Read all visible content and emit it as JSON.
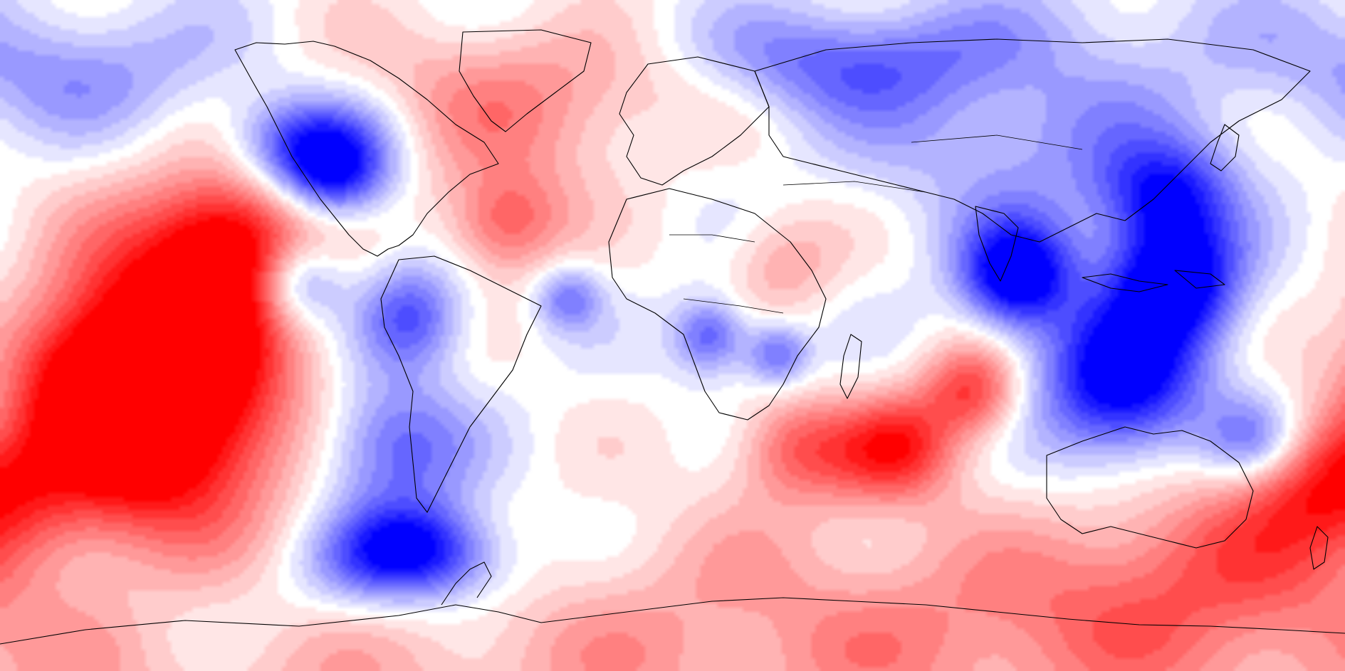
{
  "map": {
    "projection": "equirectangular",
    "colormap": [
      "#0000ff",
      "#ffffff",
      "#ff0000"
    ],
    "field_value_range": [
      -1,
      1
    ],
    "anomalies": [
      {
        "lon": -131,
        "lat": 4,
        "value": 1.0,
        "r": 22
      },
      {
        "lon": -140,
        "lat": -28,
        "value": 1.0,
        "r": 20
      },
      {
        "lon": -118,
        "lat": 26,
        "value": 0.6,
        "r": 12
      },
      {
        "lon": -160,
        "lat": -10,
        "value": 0.45,
        "r": 14
      },
      {
        "lon": -96,
        "lat": 51,
        "value": -0.75,
        "r": 9
      },
      {
        "lon": -90,
        "lat": 42,
        "value": -0.6,
        "r": 8
      },
      {
        "lon": -70,
        "lat": -58,
        "value": -1.0,
        "r": 9
      },
      {
        "lon": -75,
        "lat": -30,
        "value": -0.55,
        "r": 13
      },
      {
        "lon": -70,
        "lat": 5,
        "value": -0.6,
        "r": 10
      },
      {
        "lon": -100,
        "lat": 14,
        "value": -0.55,
        "r": 8
      },
      {
        "lon": -28,
        "lat": 10,
        "value": -0.45,
        "r": 6
      },
      {
        "lon": -40,
        "lat": 62,
        "value": 0.4,
        "r": 16
      },
      {
        "lon": -45,
        "lat": 30,
        "value": 0.55,
        "r": 10
      },
      {
        "lon": 10,
        "lat": 0,
        "value": -0.6,
        "r": 7
      },
      {
        "lon": 28,
        "lat": -5,
        "value": -0.55,
        "r": 6
      },
      {
        "lon": 33,
        "lat": -30,
        "value": 0.5,
        "r": 10
      },
      {
        "lon": 60,
        "lat": -30,
        "value": 0.7,
        "r": 10
      },
      {
        "lon": 80,
        "lat": -15,
        "value": 0.65,
        "r": 9
      },
      {
        "lon": 92,
        "lat": 16,
        "value": -1.0,
        "r": 10
      },
      {
        "lon": 120,
        "lat": -12,
        "value": -1.0,
        "r": 15
      },
      {
        "lon": 135,
        "lat": 15,
        "value": -1.0,
        "r": 12
      },
      {
        "lon": 132,
        "lat": 38,
        "value": -0.7,
        "r": 10
      },
      {
        "lon": 95,
        "lat": 55,
        "value": -0.35,
        "r": 22
      },
      {
        "lon": 145,
        "lat": -62,
        "value": 0.5,
        "r": 18
      },
      {
        "lon": 175,
        "lat": -40,
        "value": 0.6,
        "r": 12
      },
      {
        "lon": 40,
        "lat": -80,
        "value": 0.35,
        "r": 25
      },
      {
        "lon": 45,
        "lat": 73,
        "value": -0.45,
        "r": 10
      },
      {
        "lon": 30,
        "lat": 20,
        "value": 0.3,
        "r": 10
      },
      {
        "lon": -160,
        "lat": 70,
        "value": -0.35,
        "r": 12
      },
      {
        "lon": 155,
        "lat": -28,
        "value": -0.45,
        "r": 8
      }
    ]
  }
}
